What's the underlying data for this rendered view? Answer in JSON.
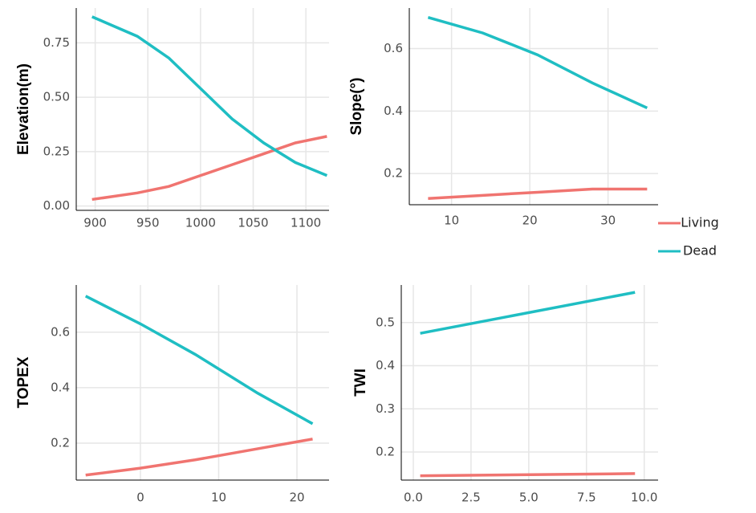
{
  "chart_data": [
    {
      "type": "line",
      "ylabel": "Elevation(m)",
      "x": [
        897,
        940,
        970,
        1000,
        1030,
        1060,
        1090,
        1120
      ],
      "series": [
        {
          "name": "Living",
          "color": "#f07470",
          "values": [
            0.03,
            0.06,
            0.09,
            0.14,
            0.19,
            0.24,
            0.29,
            0.32
          ]
        },
        {
          "name": "Dead",
          "color": "#1fbec3",
          "values": [
            0.87,
            0.78,
            0.68,
            0.54,
            0.4,
            0.29,
            0.2,
            0.14
          ]
        }
      ],
      "xlim": [
        882,
        1122
      ],
      "xticks": [
        900,
        950,
        1000,
        1050,
        1100
      ],
      "ylim": [
        -0.02,
        0.91
      ],
      "yticks": [
        {
          "value": 0,
          "label": "0.00"
        },
        {
          "value": 0.25,
          "label": "0.25"
        },
        {
          "value": 0.5,
          "label": "0.50"
        },
        {
          "value": 0.75,
          "label": "0.75"
        }
      ],
      "grid": true
    },
    {
      "type": "line",
      "ylabel": "Slope(°)",
      "x": [
        7,
        14,
        21,
        28,
        35
      ],
      "series": [
        {
          "color": "#f07470",
          "values": [
            0.12,
            0.13,
            0.14,
            0.15,
            0.15
          ]
        },
        {
          "color": "#1fbec3",
          "values": [
            0.7,
            0.65,
            0.58,
            0.49,
            0.41
          ]
        }
      ],
      "xlim": [
        4.6,
        36.4
      ],
      "xticks": [
        10,
        20,
        30
      ],
      "ylim": [
        0.1,
        0.73
      ],
      "yticks": [
        0.2,
        0.4,
        0.6
      ],
      "grid": true
    },
    {
      "type": "line",
      "ylabel": "TOPEX",
      "x": [
        -7,
        0,
        7,
        15,
        22
      ],
      "series": [
        {
          "color": "#f07470",
          "values": [
            0.085,
            0.11,
            0.14,
            0.18,
            0.215
          ]
        },
        {
          "color": "#1fbec3",
          "values": [
            0.73,
            0.63,
            0.52,
            0.38,
            0.27
          ]
        }
      ],
      "xlim": [
        -8.2,
        24.1
      ],
      "xticks": [
        0,
        10,
        20
      ],
      "ylim": [
        0.067,
        0.77
      ],
      "yticks": [
        0.2,
        0.4,
        0.6
      ],
      "grid": true
    },
    {
      "type": "line",
      "ylabel": "TWI",
      "x": [
        0.3,
        9.6
      ],
      "series": [
        {
          "color": "#f07470",
          "values": [
            0.145,
            0.15
          ]
        },
        {
          "color": "#1fbec3",
          "values": [
            0.475,
            0.57
          ]
        }
      ],
      "xlim": [
        -0.52,
        10.6
      ],
      "xticks": [
        {
          "value": 0,
          "label": "0.0"
        },
        2.5,
        {
          "value": 5,
          "label": "5.0"
        },
        7.5,
        {
          "value": 10,
          "label": "10.0"
        }
      ],
      "ylim": [
        0.135,
        0.587
      ],
      "yticks": [
        0.2,
        0.3,
        0.4,
        0.5
      ],
      "grid": true
    }
  ]
}
